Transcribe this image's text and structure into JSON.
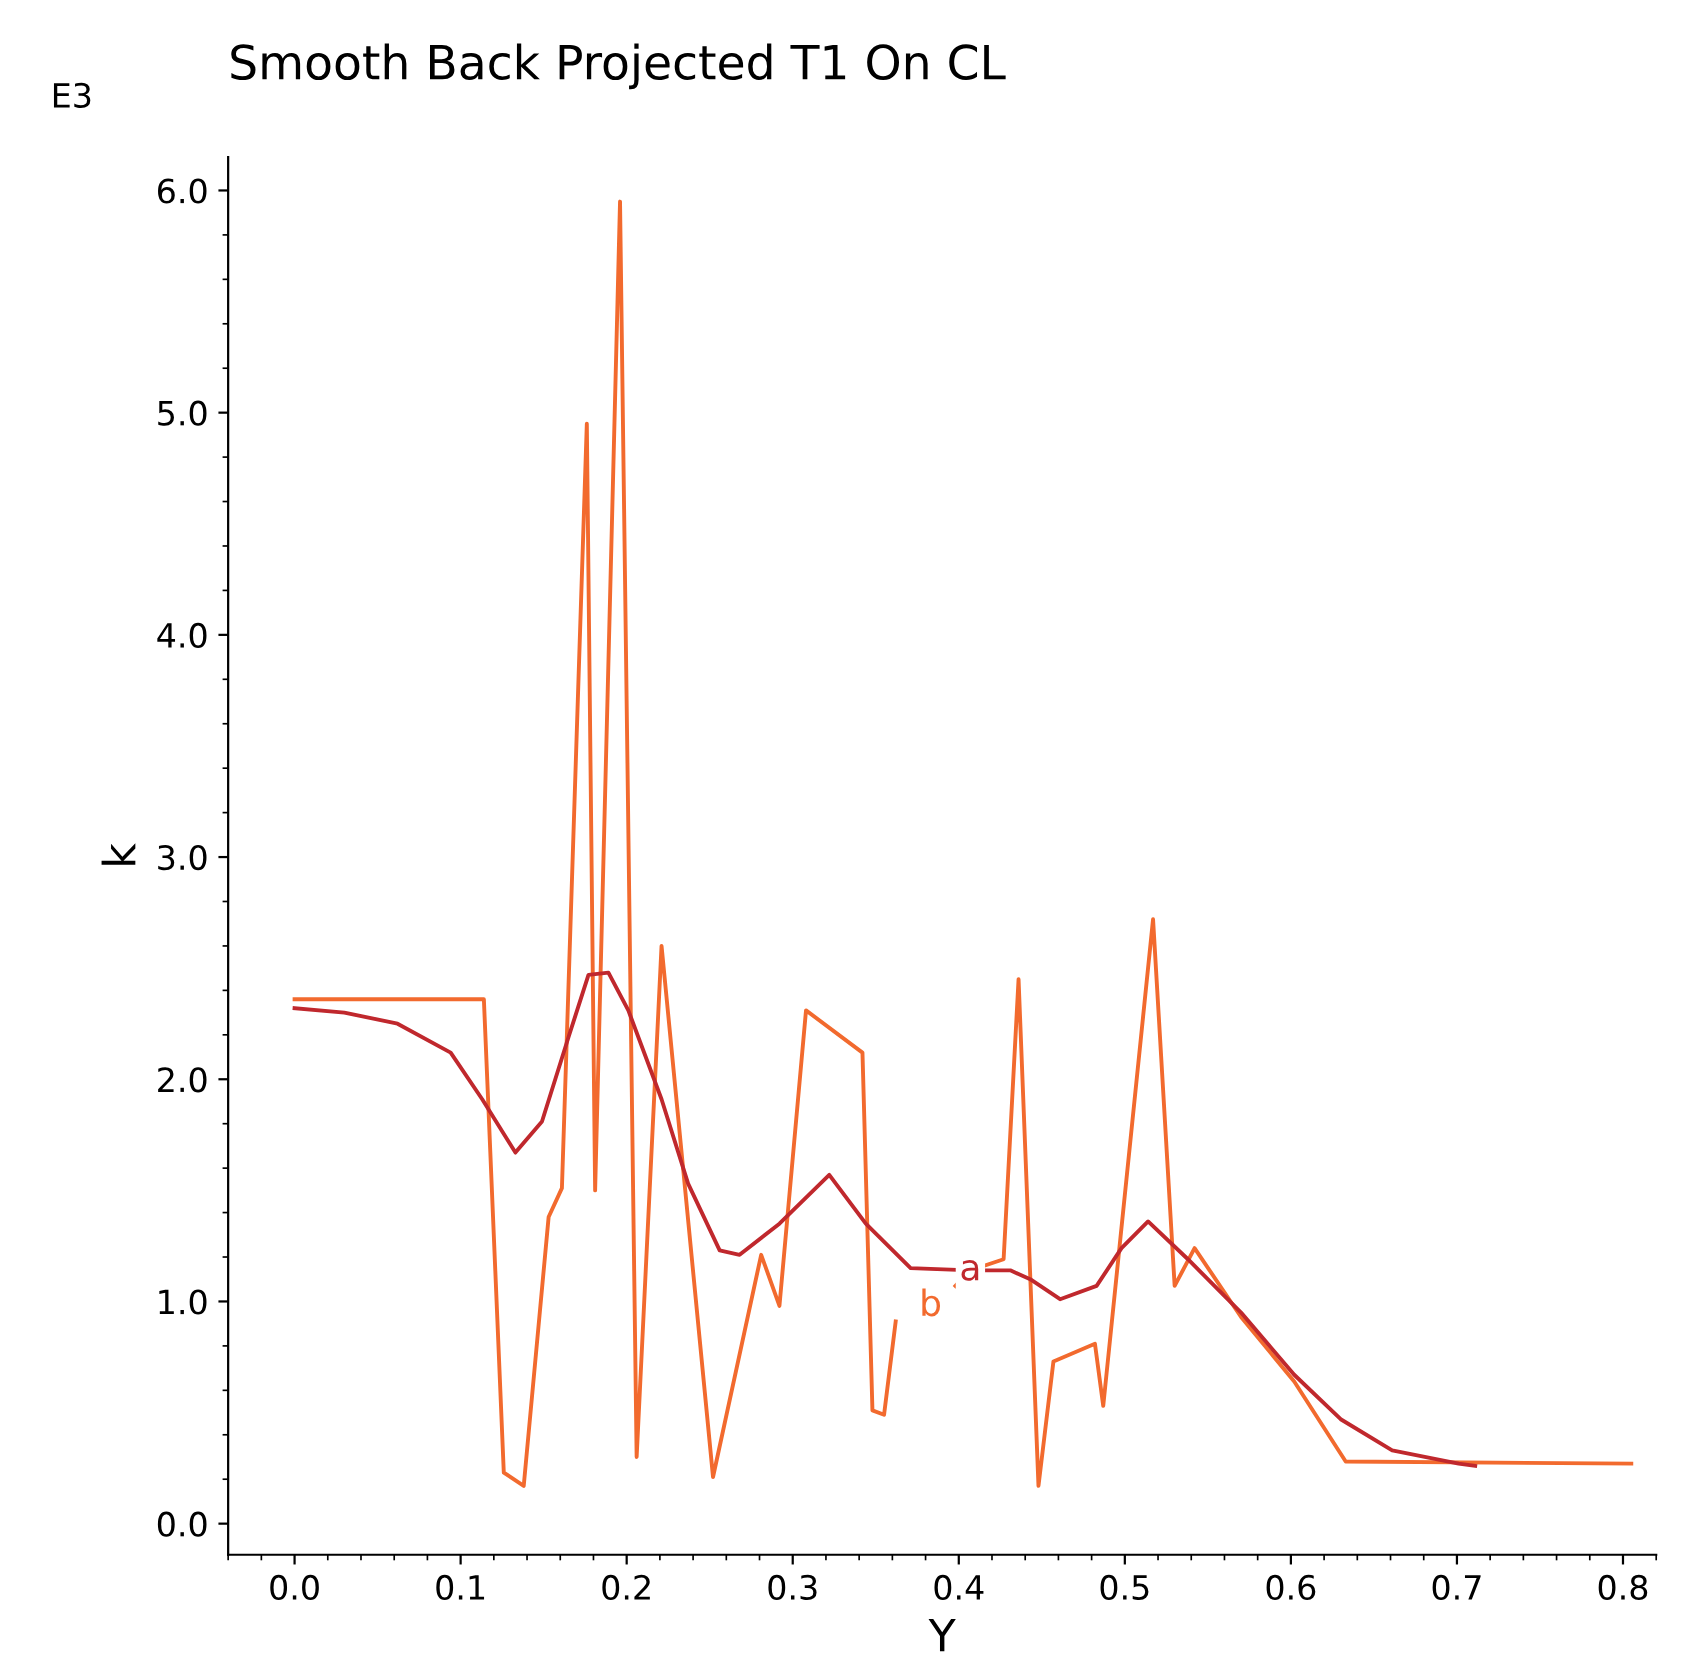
{
  "chart_data": {
    "type": "line",
    "title": "Smooth Back Projected T1 On CL",
    "xlabel": "Y",
    "ylabel": "k",
    "annotations": [
      "E3",
      {
        "text": "a",
        "x": 0.407,
        "y": 1.14
      },
      {
        "text": "b",
        "x": 0.383,
        "y": 0.98
      }
    ],
    "series": [
      {
        "color": "#f26a2e",
        "x": [
          0,
          0.114,
          0.126,
          0.138,
          0.153,
          0.161,
          0.176,
          0.181,
          0.196,
          0.206,
          0.221,
          0.252,
          0.281,
          0.292,
          0.308,
          0.342,
          0.348,
          0.355,
          0.362,
          0.383,
          0.398,
          0.407,
          0.427,
          0.436,
          0.448,
          0.457,
          0.482,
          0.487,
          0.517,
          0.53,
          0.542,
          0.57,
          0.602,
          0.633,
          0.805
        ],
        "values": [
          2.36,
          2.36,
          0.23,
          0.17,
          1.38,
          1.51,
          4.95,
          1.5,
          5.95,
          0.3,
          2.6,
          0.21,
          1.21,
          0.98,
          2.31,
          2.12,
          0.51,
          0.49,
          0.91,
          null,
          1.07,
          1.14,
          1.19,
          2.45,
          0.17,
          0.73,
          0.81,
          0.53,
          2.72,
          1.07,
          1.24,
          0.93,
          0.64,
          0.28,
          0.27
        ]
      },
      {
        "color": "#c0282d",
        "x": [
          0,
          0.03,
          0.062,
          0.094,
          0.113,
          0.133,
          0.149,
          0.165,
          0.177,
          0.189,
          0.201,
          0.221,
          0.237,
          0.256,
          0.268,
          0.292,
          0.322,
          0.344,
          0.371,
          0.407,
          0.431,
          0.443,
          0.461,
          0.483,
          0.498,
          0.514,
          0.538,
          0.57,
          0.602,
          0.63,
          0.661,
          0.701,
          0.711
        ],
        "values": [
          2.32,
          2.3,
          2.25,
          2.12,
          1.91,
          1.67,
          1.81,
          2.19,
          2.47,
          2.48,
          2.31,
          1.91,
          1.53,
          1.23,
          1.21,
          1.35,
          1.57,
          1.35,
          1.15,
          1.14,
          1.14,
          1.1,
          1.01,
          1.07,
          1.24,
          1.36,
          1.19,
          0.95,
          0.67,
          0.47,
          0.33,
          0.27,
          0.26
        ]
      }
    ],
    "xlim": [
      -0.04,
      0.82
    ],
    "ylim": [
      -0.14,
      6.15
    ],
    "xticks": [
      {
        "value": 0,
        "label": "0.0"
      },
      0.1,
      0.2,
      0.3,
      0.4,
      0.5,
      0.6,
      0.7,
      0.8
    ],
    "yticks": [
      {
        "value": 0,
        "label": "0.0"
      },
      {
        "value": 1,
        "label": "1.0"
      },
      {
        "value": 2,
        "label": "2.0"
      },
      {
        "value": 3,
        "label": "3.0"
      },
      {
        "value": 4,
        "label": "4.0"
      },
      {
        "value": 5,
        "label": "5.0"
      },
      {
        "value": 6,
        "label": "6.0"
      }
    ],
    "grid": false,
    "legend": false
  }
}
